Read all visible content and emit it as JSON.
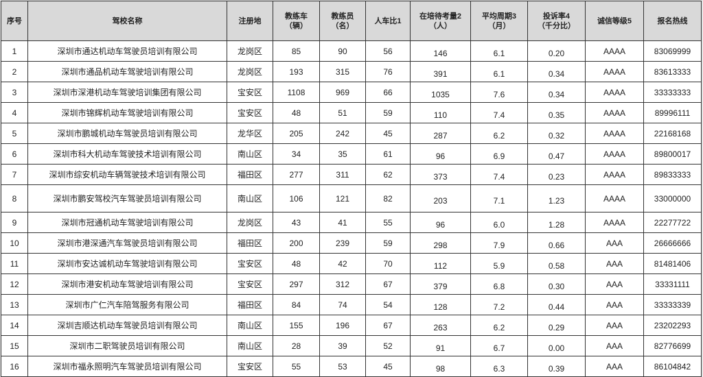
{
  "table": {
    "headers": [
      [
        "序号"
      ],
      [
        "驾校名称"
      ],
      [
        "注册地"
      ],
      [
        "教练车",
        "（辆）"
      ],
      [
        "教练员",
        "（名）"
      ],
      [
        "人车比1"
      ],
      [
        "在培待考量2",
        "（人）"
      ],
      [
        "平均周期3",
        "（月）"
      ],
      [
        "投诉率4",
        "（千分比）"
      ],
      [
        "诚信等级5"
      ],
      [
        "报名热线"
      ]
    ],
    "rows": [
      [
        "1",
        "深圳市通达机动车驾驶员培训有限公司",
        "龙岗区",
        "85",
        "90",
        "56",
        "146",
        "6.1",
        "0.20",
        "AAAA",
        "83069999"
      ],
      [
        "2",
        "深圳市通品机动车驾驶培训有限公司",
        "龙岗区",
        "193",
        "315",
        "76",
        "391",
        "6.1",
        "0.34",
        "AAAA",
        "83613333"
      ],
      [
        "3",
        "深圳市深港机动车驾驶培训集团有限公司",
        "宝安区",
        "1108",
        "969",
        "66",
        "1035",
        "7.6",
        "0.34",
        "AAAA",
        "33333333"
      ],
      [
        "4",
        "深圳市锦辉机动车驾驶培训有限公司",
        "宝安区",
        "48",
        "51",
        "59",
        "110",
        "7.4",
        "0.35",
        "AAAA",
        "89996111"
      ],
      [
        "5",
        "深圳市鹏城机动车驾驶员培训有限公司",
        "龙华区",
        "205",
        "242",
        "45",
        "287",
        "6.2",
        "0.32",
        "AAAA",
        "22168168"
      ],
      [
        "6",
        "深圳市科大机动车驾驶技术培训有限公司",
        "南山区",
        "34",
        "35",
        "61",
        "96",
        "6.9",
        "0.47",
        "AAAA",
        "89800017"
      ],
      [
        "7",
        "深圳市综安机动车辆驾驶技术培训有限公司",
        "福田区",
        "277",
        "311",
        "62",
        "373",
        "7.4",
        "0.23",
        "AAAA",
        "89833333"
      ],
      [
        "8",
        "深圳市鹏安驾校汽车驾驶员培训有限公司",
        "南山区",
        "106",
        "121",
        "82",
        "203",
        "7.1",
        "1.23",
        "AAAA",
        "33000000"
      ],
      [
        "9",
        "深圳市冠通机动车驾驶培训有限公司",
        "龙岗区",
        "43",
        "41",
        "55",
        "96",
        "6.0",
        "1.28",
        "AAAA",
        "22277722"
      ],
      [
        "10",
        "深圳市港深通汽车驾驶员培训有限公司",
        "福田区",
        "200",
        "239",
        "59",
        "298",
        "7.9",
        "0.66",
        "AAA",
        "26666666"
      ],
      [
        "11",
        "深圳市安达诚机动车驾驶培训有限公司",
        "宝安区",
        "48",
        "42",
        "70",
        "112",
        "5.9",
        "0.58",
        "AAA",
        "81481406"
      ],
      [
        "12",
        "深圳市港安机动车驾驶培训有限公司",
        "宝安区",
        "297",
        "312",
        "67",
        "379",
        "6.8",
        "0.30",
        "AAA",
        "33331111"
      ],
      [
        "13",
        "深圳市广仁汽车陪驾服务有限公司",
        "福田区",
        "84",
        "74",
        "54",
        "128",
        "7.2",
        "0.44",
        "AAA",
        "33333339"
      ],
      [
        "14",
        "深圳吉顺达机动车驾驶员培训有限公司",
        "南山区",
        "155",
        "196",
        "67",
        "263",
        "6.2",
        "0.29",
        "AAA",
        "23202293"
      ],
      [
        "15",
        "深圳市二职驾驶员培训有限公司",
        "南山区",
        "28",
        "39",
        "52",
        "91",
        "6.7",
        "0.00",
        "AAA",
        "82776699"
      ],
      [
        "16",
        "深圳市福永照明汽车驾驶员培训有限公司",
        "宝安区",
        "55",
        "53",
        "45",
        "98",
        "6.3",
        "0.39",
        "AAA",
        "86104842"
      ]
    ]
  }
}
